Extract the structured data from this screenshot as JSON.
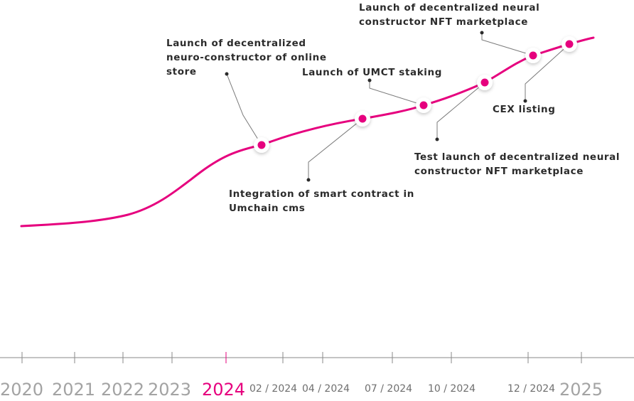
{
  "accent_color": "#e6007e",
  "milestones": [
    {
      "lines": [
        "Launch of decentralized",
        "neuro-constructor of online",
        "store"
      ]
    },
    {
      "lines": [
        "Integration of smart contract in",
        "Umchain cms"
      ]
    },
    {
      "lines": [
        "Launch of UMCT staking"
      ]
    },
    {
      "lines": [
        "Test launch of decentralized neural",
        "constructor NFT marketplace"
      ]
    },
    {
      "lines": [
        "Launch of decentralized neural",
        "constructor NFT marketplace"
      ]
    },
    {
      "lines": [
        "CEX listing"
      ]
    }
  ],
  "timeline": {
    "active": "2024",
    "labels": [
      {
        "text": "2020",
        "kind": "year"
      },
      {
        "text": "2021",
        "kind": "year"
      },
      {
        "text": "2022",
        "kind": "year"
      },
      {
        "text": "2023",
        "kind": "year"
      },
      {
        "text": "2024",
        "kind": "year"
      },
      {
        "text": "02 / 2024",
        "kind": "month"
      },
      {
        "text": "04 / 2024",
        "kind": "month"
      },
      {
        "text": "07 / 2024",
        "kind": "month"
      },
      {
        "text": "10 / 2024",
        "kind": "month"
      },
      {
        "text": "12 / 2024",
        "kind": "month"
      },
      {
        "text": "2025",
        "kind": "year"
      }
    ]
  }
}
